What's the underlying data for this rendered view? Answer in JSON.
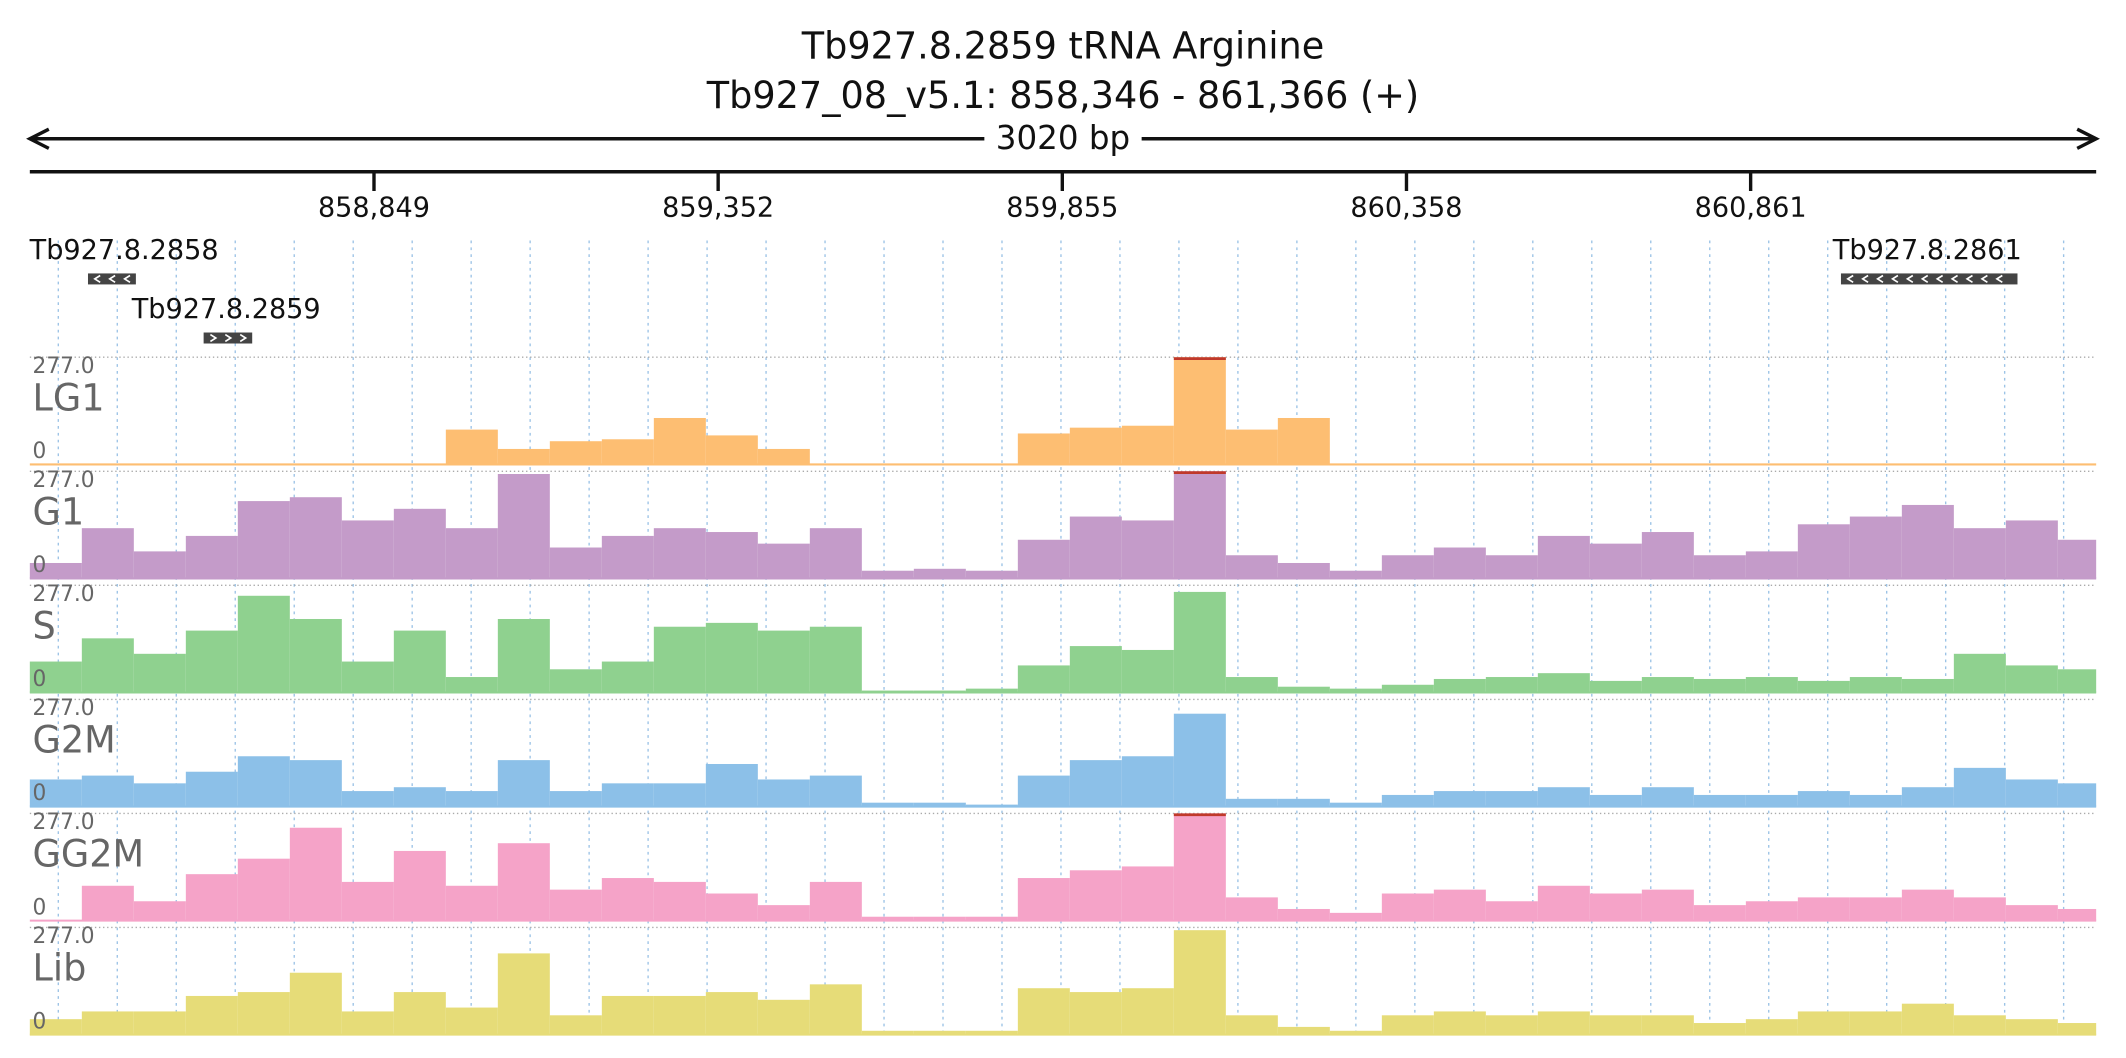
{
  "chart_data": {
    "type": "coverage",
    "title": "Tb927.8.2859  tRNA Arginine",
    "subtitle": "Tb927_08_v5.1: 858,346 - 861,366 (+)",
    "span": {
      "value": 3020,
      "label": "3020 bp"
    },
    "xlim": [
      858346,
      861366
    ],
    "xticks": [
      {
        "value": 858849,
        "label": "858,849"
      },
      {
        "value": 859352,
        "label": "859,352"
      },
      {
        "value": 859855,
        "label": "859,855"
      },
      {
        "value": 860358,
        "label": "860,358"
      },
      {
        "value": 860861,
        "label": "860,861"
      }
    ],
    "genes": [
      {
        "name": "Tb927.8.2858",
        "start": 858431,
        "end": 858501,
        "strand": "-"
      },
      {
        "name": "Tb927.8.2859",
        "start": 858600,
        "end": 858671,
        "strand": "+"
      },
      {
        "name": "Tb927.8.2861",
        "start": 860993,
        "end": 861251,
        "strand": "-"
      }
    ],
    "x": [
      858346,
      858422,
      858498,
      858574,
      858650,
      858726,
      858802,
      858878,
      858954,
      859030,
      859106,
      859182,
      859258,
      859334,
      859410,
      859486,
      859562,
      859638,
      859714,
      859790,
      859866,
      859942,
      860018,
      860094,
      860170,
      860246,
      860322,
      860398,
      860474,
      860550,
      860626,
      860702,
      860778,
      860854,
      860930,
      861006,
      861082,
      861158,
      861234,
      861310
    ],
    "ylim": [
      0,
      277
    ],
    "yticks": [
      0,
      {
        "value": 277,
        "label": "277.0"
      }
    ],
    "tracks": [
      {
        "name": "LG1",
        "color": "#fdbe72",
        "values": [
          0,
          0,
          0,
          0,
          0,
          0,
          0,
          0,
          90,
          40,
          60,
          65,
          120,
          75,
          40,
          0,
          0,
          0,
          0,
          80,
          95,
          100,
          277,
          90,
          120,
          0,
          0,
          0,
          0,
          0,
          0,
          0,
          0,
          0,
          0,
          0,
          0,
          0,
          0,
          0
        ]
      },
      {
        "name": "G1",
        "color": "#c49bc9",
        "values": [
          40,
          130,
          70,
          110,
          200,
          210,
          150,
          180,
          130,
          270,
          80,
          110,
          130,
          120,
          90,
          130,
          20,
          25,
          20,
          100,
          160,
          150,
          277,
          60,
          40,
          20,
          60,
          80,
          60,
          110,
          90,
          120,
          60,
          70,
          140,
          160,
          190,
          130,
          150,
          100
        ]
      },
      {
        "name": "S",
        "color": "#8fd18f",
        "values": [
          80,
          140,
          100,
          160,
          250,
          190,
          80,
          160,
          40,
          190,
          60,
          80,
          170,
          180,
          160,
          170,
          5,
          5,
          10,
          70,
          120,
          110,
          260,
          40,
          15,
          10,
          20,
          35,
          40,
          50,
          30,
          40,
          35,
          40,
          30,
          40,
          35,
          100,
          70,
          60
        ]
      },
      {
        "name": "G2M",
        "color": "#8cc0e8",
        "values": [
          70,
          80,
          60,
          90,
          130,
          120,
          40,
          50,
          40,
          120,
          40,
          60,
          60,
          110,
          70,
          80,
          10,
          10,
          5,
          80,
          120,
          130,
          240,
          20,
          20,
          10,
          30,
          40,
          40,
          50,
          30,
          50,
          30,
          30,
          40,
          30,
          50,
          100,
          70,
          60
        ]
      },
      {
        "name": "GG2M",
        "color": "#f5a3c8",
        "values": [
          0,
          90,
          50,
          120,
          160,
          240,
          100,
          180,
          90,
          200,
          80,
          110,
          100,
          70,
          40,
          100,
          10,
          10,
          10,
          110,
          130,
          140,
          277,
          60,
          30,
          20,
          70,
          80,
          50,
          90,
          70,
          80,
          40,
          50,
          60,
          60,
          80,
          60,
          40,
          30
        ]
      },
      {
        "name": "Lib",
        "color": "#e6dc78",
        "values": [
          40,
          60,
          60,
          100,
          110,
          160,
          60,
          110,
          70,
          210,
          50,
          100,
          100,
          110,
          90,
          130,
          10,
          10,
          10,
          120,
          110,
          120,
          270,
          50,
          20,
          10,
          50,
          60,
          50,
          60,
          50,
          50,
          30,
          40,
          60,
          60,
          80,
          50,
          40,
          30
        ]
      }
    ]
  }
}
